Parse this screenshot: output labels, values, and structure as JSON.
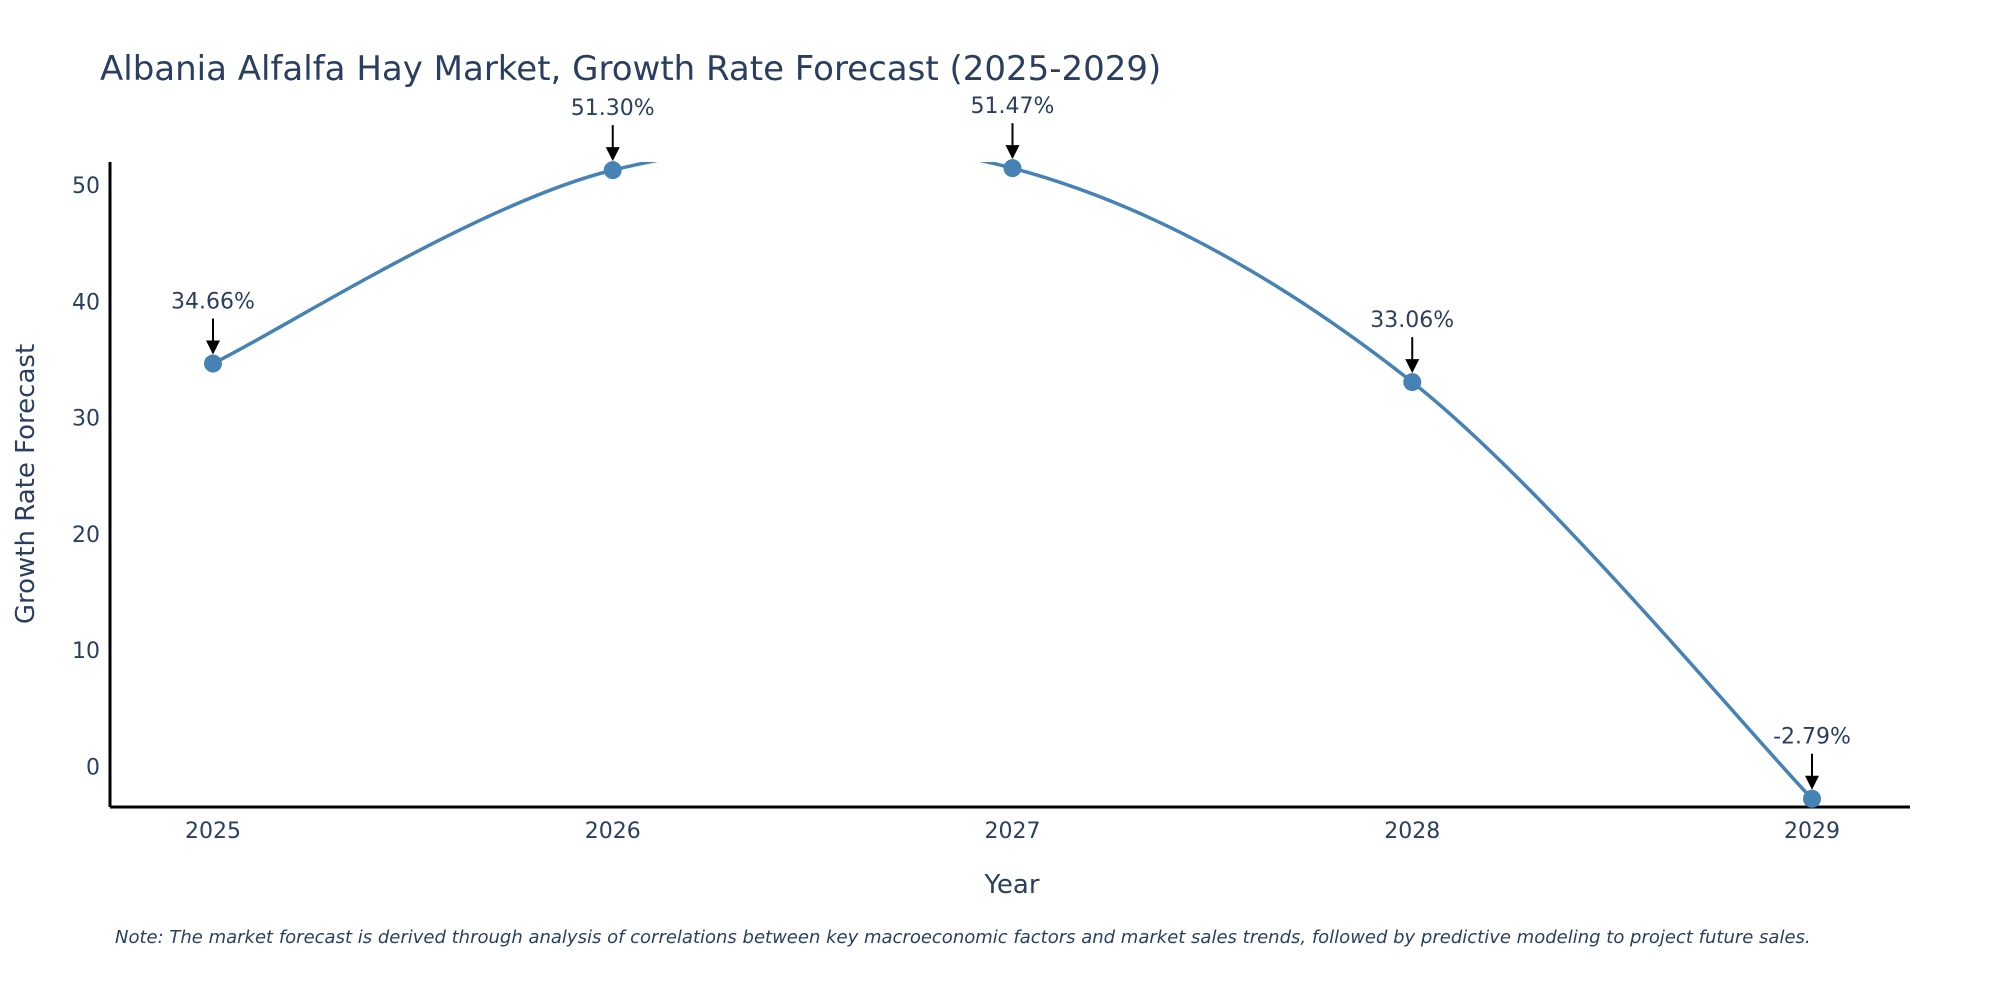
{
  "chart_data": {
    "type": "line",
    "title": "Albania Alfalfa Hay Market, Growth Rate Forecast (2025-2029)",
    "xlabel": "Year",
    "ylabel": "Growth Rate Forecast",
    "categories": [
      "2025",
      "2026",
      "2027",
      "2028",
      "2029"
    ],
    "series": [
      {
        "name": "Growth Rate Forecast",
        "values": [
          34.66,
          51.3,
          51.47,
          33.06,
          -2.79
        ],
        "labels": [
          "34.66%",
          "51.30%",
          "51.47%",
          "33.06%",
          "-2.79%"
        ],
        "color": "#4682b4"
      }
    ],
    "y_ticks": [
      0,
      10,
      20,
      30,
      40,
      50
    ],
    "y_tick_labels": [
      "0",
      "10",
      "20",
      "30",
      "40",
      "50"
    ],
    "ylim": [
      -3.5,
      52
    ],
    "grid": false
  },
  "note": "Note: The market forecast is derived through analysis of correlations between key macroeconomic factors and market sales trends, followed by predictive modeling to project future sales.",
  "colors": {
    "line": "#4682b4",
    "text": "#2a3f5f",
    "axis": "#000000"
  }
}
